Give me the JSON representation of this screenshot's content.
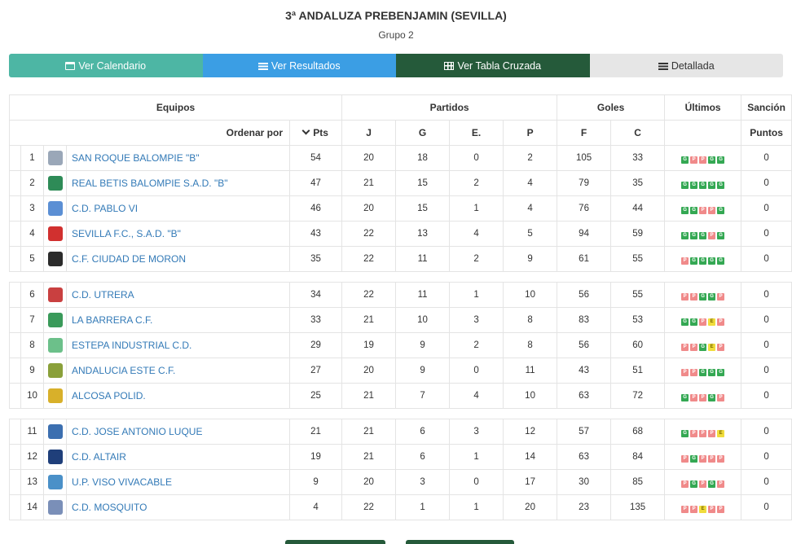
{
  "header": {
    "title": "3ª ANDALUZA PREBENJAMIN (SEVILLA)",
    "subtitle": "Grupo 2"
  },
  "tabs": [
    {
      "label": "Ver Calendario",
      "icon": "calendar-icon"
    },
    {
      "label": "Ver Resultados",
      "icon": "list-icon"
    },
    {
      "label": "Ver Tabla Cruzada",
      "icon": "table-icon"
    },
    {
      "label": "Detallada",
      "icon": "list-icon"
    }
  ],
  "table": {
    "group_headers": {
      "equipos": "Equipos",
      "partidos": "Partidos",
      "goles": "Goles",
      "ultimos": "Últimos",
      "sancion": "Sanción"
    },
    "sub_headers": {
      "ordenar": "Ordenar por",
      "pts": "Pts",
      "j": "J",
      "g": "G",
      "e": "E.",
      "p": "P",
      "f": "F",
      "c": "C",
      "puntos": "Puntos"
    },
    "colors": {
      "win": "#34a853",
      "loss": "#f08a8a",
      "draw": "#f0dc3c"
    },
    "rows": [
      {
        "pos": "1",
        "team": "SAN ROQUE BALOMPIE \"B\"",
        "crest": "#9aa7b8",
        "pts": "54",
        "j": "20",
        "g": "18",
        "e": "0",
        "p": "2",
        "f": "105",
        "c": "33",
        "form": [
          "G",
          "P",
          "P",
          "G",
          "G"
        ],
        "sancion": "0"
      },
      {
        "pos": "2",
        "team": "REAL BETIS BALOMPIE S.A.D. \"B\"",
        "crest": "#2e8b57",
        "pts": "47",
        "j": "21",
        "g": "15",
        "e": "2",
        "p": "4",
        "f": "79",
        "c": "35",
        "form": [
          "G",
          "G",
          "G",
          "G",
          "G"
        ],
        "sancion": "0"
      },
      {
        "pos": "3",
        "team": "C.D. PABLO VI",
        "crest": "#5b8fd4",
        "pts": "46",
        "j": "20",
        "g": "15",
        "e": "1",
        "p": "4",
        "f": "76",
        "c": "44",
        "form": [
          "G",
          "G",
          "P",
          "P",
          "G"
        ],
        "sancion": "0"
      },
      {
        "pos": "4",
        "team": "SEVILLA F.C., S.A.D. \"B\"",
        "crest": "#d1302f",
        "pts": "43",
        "j": "22",
        "g": "13",
        "e": "4",
        "p": "5",
        "f": "94",
        "c": "59",
        "form": [
          "G",
          "G",
          "G",
          "P",
          "G"
        ],
        "sancion": "0"
      },
      {
        "pos": "5",
        "team": "C.F. CIUDAD DE MORON",
        "crest": "#2b2b2b",
        "pts": "35",
        "j": "22",
        "g": "11",
        "e": "2",
        "p": "9",
        "f": "61",
        "c": "55",
        "form": [
          "P",
          "G",
          "G",
          "G",
          "G"
        ],
        "sancion": "0"
      },
      {
        "pos": "6",
        "team": "C.D. UTRERA",
        "crest": "#c94040",
        "pts": "34",
        "j": "22",
        "g": "11",
        "e": "1",
        "p": "10",
        "f": "56",
        "c": "55",
        "form": [
          "P",
          "P",
          "G",
          "G",
          "P"
        ],
        "sancion": "0"
      },
      {
        "pos": "7",
        "team": "LA BARRERA C.F.",
        "crest": "#3a9a5a",
        "pts": "33",
        "j": "21",
        "g": "10",
        "e": "3",
        "p": "8",
        "f": "83",
        "c": "53",
        "form": [
          "G",
          "G",
          "P",
          "E",
          "P"
        ],
        "sancion": "0"
      },
      {
        "pos": "8",
        "team": "ESTEPA INDUSTRIAL C.D.",
        "crest": "#6cc08a",
        "pts": "29",
        "j": "19",
        "g": "9",
        "e": "2",
        "p": "8",
        "f": "56",
        "c": "60",
        "form": [
          "P",
          "P",
          "G",
          "E",
          "P"
        ],
        "sancion": "0"
      },
      {
        "pos": "9",
        "team": "ANDALUCIA ESTE C.F.",
        "crest": "#8aa03a",
        "pts": "27",
        "j": "20",
        "g": "9",
        "e": "0",
        "p": "11",
        "f": "43",
        "c": "51",
        "form": [
          "P",
          "P",
          "G",
          "G",
          "G"
        ],
        "sancion": "0"
      },
      {
        "pos": "10",
        "team": "ALCOSA POLID.",
        "crest": "#d8b02a",
        "pts": "25",
        "j": "21",
        "g": "7",
        "e": "4",
        "p": "10",
        "f": "63",
        "c": "72",
        "form": [
          "G",
          "P",
          "P",
          "G",
          "P"
        ],
        "sancion": "0"
      },
      {
        "pos": "11",
        "team": "C.D. JOSE ANTONIO LUQUE",
        "crest": "#3c6fb0",
        "pts": "21",
        "j": "21",
        "g": "6",
        "e": "3",
        "p": "12",
        "f": "57",
        "c": "68",
        "form": [
          "G",
          "P",
          "P",
          "P",
          "E"
        ],
        "sancion": "0"
      },
      {
        "pos": "12",
        "team": "C.D. ALTAIR",
        "crest": "#1f3f7a",
        "pts": "19",
        "j": "21",
        "g": "6",
        "e": "1",
        "p": "14",
        "f": "63",
        "c": "84",
        "form": [
          "P",
          "G",
          "P",
          "P",
          "P"
        ],
        "sancion": "0"
      },
      {
        "pos": "13",
        "team": "U.P. VISO VIVACABLE",
        "crest": "#4a90c8",
        "pts": "9",
        "j": "20",
        "g": "3",
        "e": "0",
        "p": "17",
        "f": "30",
        "c": "85",
        "form": [
          "P",
          "G",
          "P",
          "G",
          "P"
        ],
        "sancion": "0"
      },
      {
        "pos": "14",
        "team": "C.D. MOSQUITO",
        "crest": "#7a8fb8",
        "pts": "4",
        "j": "22",
        "g": "1",
        "e": "1",
        "p": "20",
        "f": "23",
        "c": "135",
        "form": [
          "P",
          "P",
          "E",
          "P",
          "P"
        ],
        "sancion": "0"
      }
    ],
    "separators_after": [
      5,
      10
    ]
  }
}
